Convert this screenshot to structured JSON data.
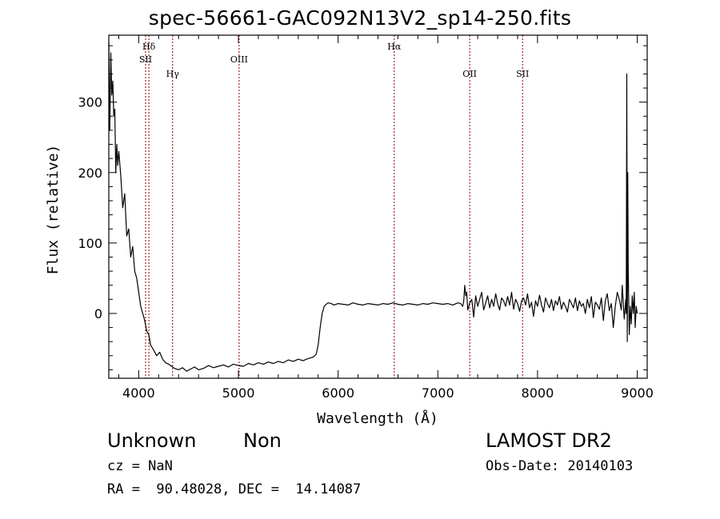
{
  "title": "spec-56661-GAC092N13V2_sp14-250.fits",
  "info": {
    "object_class": "Unknown",
    "object_subclass": "Non",
    "survey": "LAMOST DR2",
    "redshift": "cz = NaN",
    "obs_date": "Obs-Date: 20140103",
    "coordinates": "RA =  90.48028, DEC =  14.14087"
  },
  "chart_data": {
    "type": "line",
    "xlabel": "Wavelength (Å)",
    "ylabel": "Flux (relative)",
    "xlim": [
      3700,
      9100
    ],
    "ylim": [
      -92,
      395
    ],
    "xticks": [
      4000,
      5000,
      6000,
      7000,
      8000,
      9000
    ],
    "yticks": [
      0,
      100,
      200,
      300
    ],
    "grid": false,
    "line_color": "#000000",
    "marker_color": "#8b0000",
    "line_markers": [
      {
        "label": "Hδ",
        "x": 4102
      },
      {
        "label": "SII",
        "x": 4069
      },
      {
        "label": "Hγ",
        "x": 4340
      },
      {
        "label": "OIII",
        "x": 5007
      },
      {
        "label": "Hα",
        "x": 6563
      },
      {
        "label": "OII",
        "x": 7320
      },
      {
        "label": "SII",
        "x": 7850
      }
    ],
    "series": [
      {
        "x": [
          3700,
          3710,
          3720,
          3730,
          3740,
          3750,
          3760,
          3770,
          3780,
          3790,
          3800,
          3820,
          3840,
          3860,
          3880,
          3900,
          3920,
          3940,
          3960,
          3980,
          4000,
          4020,
          4040,
          4060,
          4080,
          4100,
          4120,
          4150,
          4180,
          4210,
          4240,
          4270,
          4300,
          4330,
          4360,
          4400,
          4440,
          4480,
          4520,
          4560,
          4600,
          4650,
          4700,
          4750,
          4800,
          4850,
          4900,
          4950,
          5000,
          5050,
          5100,
          5150,
          5200,
          5250,
          5300,
          5350,
          5400,
          5450,
          5500,
          5550,
          5600,
          5650,
          5700,
          5750,
          5780,
          5800,
          5820,
          5840,
          5860,
          5880,
          5900,
          5930,
          5960,
          6000,
          6050,
          6100,
          6150,
          6200,
          6250,
          6300,
          6350,
          6400,
          6450,
          6500,
          6550,
          6600,
          6650,
          6700,
          6750,
          6800,
          6850,
          6900,
          6950,
          7000,
          7050,
          7100,
          7150,
          7200,
          7230,
          7250,
          7260,
          7270,
          7280,
          7290,
          7300,
          7320,
          7340,
          7360,
          7380,
          7400,
          7420,
          7440,
          7460,
          7480,
          7500,
          7520,
          7540,
          7560,
          7580,
          7600,
          7620,
          7640,
          7660,
          7680,
          7700,
          7720,
          7740,
          7760,
          7780,
          7800,
          7820,
          7840,
          7860,
          7880,
          7900,
          7920,
          7940,
          7960,
          7980,
          8000,
          8020,
          8040,
          8060,
          8080,
          8100,
          8120,
          8140,
          8160,
          8180,
          8200,
          8220,
          8240,
          8260,
          8280,
          8300,
          8320,
          8340,
          8360,
          8380,
          8400,
          8420,
          8440,
          8460,
          8480,
          8500,
          8520,
          8540,
          8560,
          8580,
          8600,
          8620,
          8640,
          8660,
          8680,
          8700,
          8720,
          8740,
          8760,
          8780,
          8800,
          8820,
          8840,
          8850,
          8860,
          8870,
          8880,
          8885,
          8890,
          8895,
          8900,
          8905,
          8910,
          8920,
          8930,
          8940,
          8950,
          8960,
          8970,
          8980,
          8990,
          9000
        ],
        "y": [
          385,
          260,
          370,
          310,
          330,
          280,
          290,
          200,
          240,
          210,
          230,
          195,
          150,
          170,
          110,
          120,
          80,
          95,
          60,
          50,
          30,
          10,
          0,
          -10,
          -25,
          -30,
          -45,
          -52,
          -60,
          -55,
          -65,
          -70,
          -72,
          -75,
          -78,
          -80,
          -77,
          -82,
          -79,
          -76,
          -80,
          -78,
          -74,
          -77,
          -75,
          -73,
          -76,
          -72,
          -74,
          -75,
          -71,
          -73,
          -70,
          -72,
          -69,
          -71,
          -68,
          -70,
          -66,
          -68,
          -65,
          -67,
          -64,
          -62,
          -58,
          -45,
          -20,
          0,
          10,
          13,
          15,
          14,
          12,
          14,
          13,
          12,
          15,
          13,
          12,
          14,
          13,
          12,
          14,
          13,
          15,
          13,
          12,
          14,
          13,
          12,
          14,
          13,
          15,
          14,
          13,
          14,
          12,
          15,
          14,
          10,
          18,
          40,
          25,
          30,
          5,
          15,
          20,
          -5,
          25,
          10,
          20,
          30,
          5,
          15,
          25,
          8,
          20,
          10,
          28,
          14,
          5,
          22,
          18,
          10,
          24,
          12,
          30,
          6,
          20,
          14,
          3,
          18,
          22,
          12,
          28,
          8,
          16,
          -4,
          18,
          10,
          26,
          12,
          2,
          22,
          14,
          8,
          20,
          4,
          18,
          12,
          24,
          6,
          16,
          10,
          2,
          20,
          14,
          8,
          22,
          4,
          18,
          10,
          14,
          0,
          20,
          8,
          24,
          -6,
          16,
          12,
          6,
          22,
          -10,
          18,
          28,
          4,
          14,
          -20,
          10,
          30,
          20,
          5,
          40,
          15,
          -8,
          10,
          20,
          0,
          340,
          -40,
          200,
          60,
          -30,
          10,
          -15,
          25,
          0,
          30,
          -20,
          10,
          0
        ]
      }
    ]
  }
}
